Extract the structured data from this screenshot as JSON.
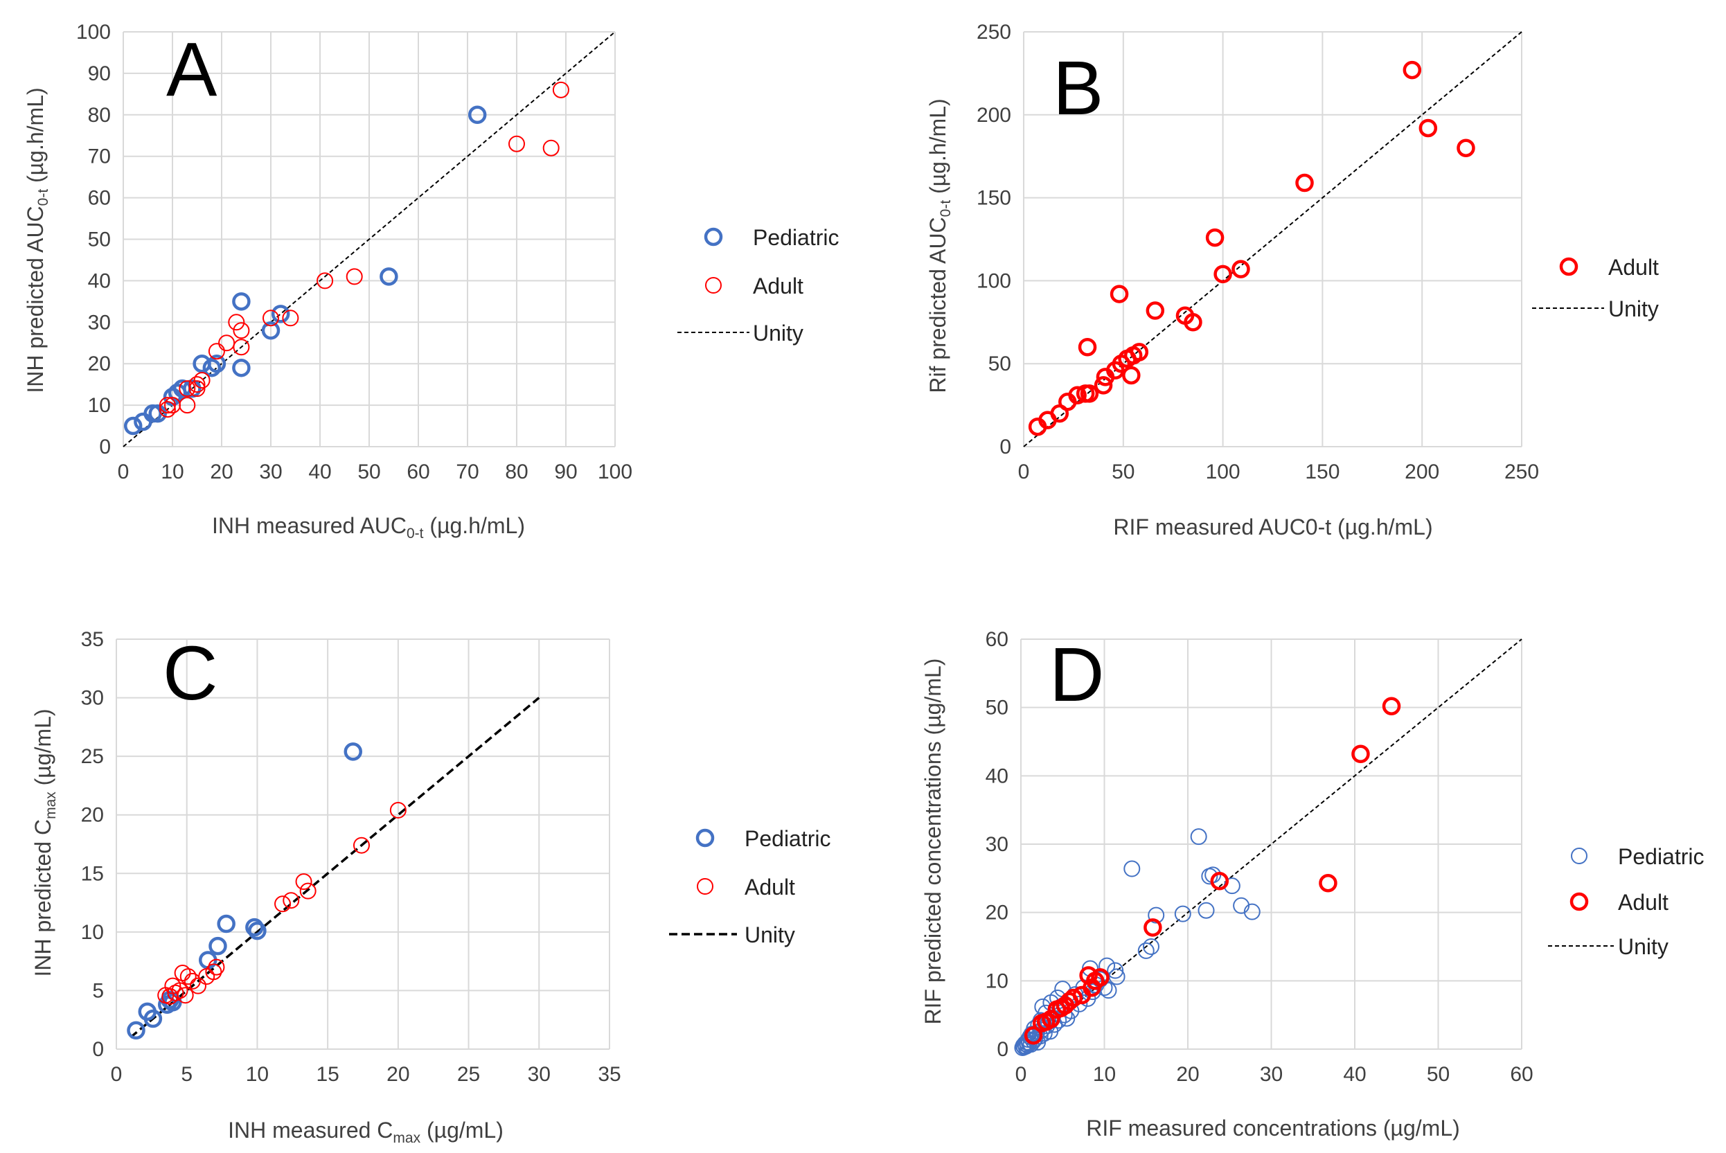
{
  "colors": {
    "pediatric": "#4472C4",
    "adult": "#FF0000",
    "unity": "#000000",
    "grid": "#D9D9D9",
    "text": "#404040"
  },
  "chart_data": [
    {
      "id": "A",
      "type": "scatter",
      "panel_letter": "A",
      "xlabel": {
        "pre": "INH measured AUC",
        "sub": "0-t",
        "post": " (µg.h/mL)"
      },
      "ylabel": {
        "pre": "INH predicted AUC",
        "sub": "0-t",
        "post": " (µg.h/mL)"
      },
      "xlim": [
        0,
        100
      ],
      "ylim": [
        0,
        100
      ],
      "xticks": [
        0,
        10,
        20,
        30,
        40,
        50,
        60,
        70,
        80,
        90,
        100
      ],
      "yticks": [
        0,
        10,
        20,
        30,
        40,
        50,
        60,
        70,
        80,
        90,
        100
      ],
      "grid": true,
      "legend_position": "right",
      "unity": [
        [
          0,
          0
        ],
        [
          100,
          100
        ]
      ],
      "legend": [
        "Pediatric",
        "Adult",
        "Unity"
      ],
      "series": [
        {
          "name": "Pediatric",
          "color": "#4472C4",
          "marker": "bold",
          "points": [
            [
              2,
              5
            ],
            [
              4,
              6
            ],
            [
              6,
              8
            ],
            [
              7,
              8
            ],
            [
              10,
              12
            ],
            [
              11,
              13
            ],
            [
              12,
              14
            ],
            [
              14,
              14
            ],
            [
              16,
              20
            ],
            [
              18,
              19
            ],
            [
              19,
              20
            ],
            [
              24,
              35
            ],
            [
              24,
              19
            ],
            [
              30,
              28
            ],
            [
              32,
              32
            ],
            [
              54,
              41
            ],
            [
              72,
              80
            ]
          ]
        },
        {
          "name": "Adult",
          "color": "#FF0000",
          "marker": "thin",
          "points": [
            [
              9,
              9
            ],
            [
              9,
              10
            ],
            [
              10,
              10
            ],
            [
              13,
              10
            ],
            [
              13,
              14
            ],
            [
              15,
              14
            ],
            [
              15,
              15
            ],
            [
              16,
              16
            ],
            [
              19,
              23
            ],
            [
              21,
              25
            ],
            [
              23,
              30
            ],
            [
              24,
              24
            ],
            [
              24,
              28
            ],
            [
              30,
              31
            ],
            [
              34,
              31
            ],
            [
              41,
              40
            ],
            [
              47,
              41
            ],
            [
              80,
              73
            ],
            [
              87,
              72
            ],
            [
              89,
              86
            ]
          ]
        }
      ]
    },
    {
      "id": "B",
      "type": "scatter",
      "panel_letter": "B",
      "xlabel": {
        "pre": "RIF measured AUC",
        "sub": "0-t",
        "post": " (µg.h/mL)"
      },
      "ylabel": {
        "pre": "Rif predicted AUC",
        "sub": "0-t",
        "post": " (µg.h/mL)"
      },
      "xlim": [
        0,
        250
      ],
      "ylim": [
        0,
        250
      ],
      "xticks": [
        0,
        50,
        100,
        150,
        200,
        250
      ],
      "yticks": [
        0,
        50,
        100,
        150,
        200,
        250
      ],
      "grid": true,
      "legend_position": "right",
      "unity": [
        [
          0,
          0
        ],
        [
          250,
          250
        ]
      ],
      "legend": [
        "Adult",
        "Unity"
      ],
      "series": [
        {
          "name": "Adult",
          "color": "#FF0000",
          "marker": "bold",
          "points": [
            [
              7,
              12
            ],
            [
              12,
              16
            ],
            [
              18,
              20
            ],
            [
              22,
              27
            ],
            [
              27,
              31
            ],
            [
              31,
              32
            ],
            [
              32,
              60
            ],
            [
              33,
              32
            ],
            [
              40,
              37
            ],
            [
              41,
              42
            ],
            [
              46,
              46
            ],
            [
              48,
              92
            ],
            [
              49,
              50
            ],
            [
              52,
              53
            ],
            [
              54,
              43
            ],
            [
              55,
              55
            ],
            [
              58,
              57
            ],
            [
              66,
              82
            ],
            [
              81,
              79
            ],
            [
              85,
              75
            ],
            [
              96,
              126
            ],
            [
              100,
              104
            ],
            [
              109,
              107
            ],
            [
              141,
              159
            ],
            [
              195,
              227
            ],
            [
              203,
              192
            ],
            [
              222,
              180
            ]
          ]
        }
      ]
    },
    {
      "id": "C",
      "type": "scatter",
      "panel_letter": "C",
      "xlabel": {
        "pre": "INH measured C",
        "sub": "max",
        "post": " (µg/mL)"
      },
      "ylabel": {
        "pre": "INH predicted C",
        "sub": "max",
        "post": " (µg/mL)"
      },
      "xlim": [
        0,
        35
      ],
      "ylim": [
        0,
        35
      ],
      "xticks": [
        0,
        5,
        10,
        15,
        20,
        25,
        30,
        35
      ],
      "yticks": [
        0,
        5,
        10,
        15,
        20,
        25,
        30,
        35
      ],
      "grid": true,
      "legend_position": "right",
      "unity": [
        [
          1,
          1
        ],
        [
          30,
          30
        ]
      ],
      "legend": [
        "Pediatric",
        "Adult",
        "Unity"
      ],
      "series": [
        {
          "name": "Pediatric",
          "color": "#4472C4",
          "marker": "bold",
          "points": [
            [
              1.4,
              1.6
            ],
            [
              2.2,
              3.2
            ],
            [
              2.6,
              2.6
            ],
            [
              3.6,
              3.8
            ],
            [
              3.8,
              4.2
            ],
            [
              4.0,
              4.0
            ],
            [
              6.5,
              7.6
            ],
            [
              7.2,
              8.8
            ],
            [
              7.8,
              10.7
            ],
            [
              9.8,
              10.4
            ],
            [
              10.0,
              10.1
            ],
            [
              16.8,
              25.4
            ]
          ]
        },
        {
          "name": "Adult",
          "color": "#FF0000",
          "marker": "thin",
          "points": [
            [
              3.5,
              4.6
            ],
            [
              3.8,
              4.5
            ],
            [
              4.0,
              5.4
            ],
            [
              4.2,
              4.8
            ],
            [
              4.5,
              5.0
            ],
            [
              4.7,
              6.5
            ],
            [
              4.9,
              4.6
            ],
            [
              5.1,
              6.2
            ],
            [
              5.4,
              5.8
            ],
            [
              5.8,
              5.4
            ],
            [
              6.4,
              6.2
            ],
            [
              6.9,
              6.6
            ],
            [
              7.1,
              7.0
            ],
            [
              11.8,
              12.4
            ],
            [
              12.4,
              12.7
            ],
            [
              13.3,
              14.3
            ],
            [
              13.6,
              13.5
            ],
            [
              17.4,
              17.4
            ],
            [
              20.0,
              20.4
            ]
          ]
        }
      ]
    },
    {
      "id": "D",
      "type": "scatter",
      "panel_letter": "D",
      "xlabel": {
        "pre": "RIF measured concentrations (µg/mL)",
        "sub": "",
        "post": ""
      },
      "ylabel": {
        "pre": "RIF predicted concentrations (µg/mL)",
        "sub": "",
        "post": ""
      },
      "xlim": [
        0,
        60
      ],
      "ylim": [
        0,
        60
      ],
      "xticks": [
        0,
        10,
        20,
        30,
        40,
        50,
        60
      ],
      "yticks": [
        0,
        10,
        20,
        30,
        40,
        50,
        60
      ],
      "grid": true,
      "legend_position": "right",
      "unity": [
        [
          0,
          0
        ],
        [
          60,
          60
        ]
      ],
      "legend": [
        "Pediatric",
        "Adult",
        "Unity"
      ],
      "series": [
        {
          "name": "Pediatric",
          "color": "#4472C4",
          "marker": "thin",
          "points": [
            [
              0.2,
              0.2
            ],
            [
              0.3,
              0.5
            ],
            [
              0.4,
              0.3
            ],
            [
              0.5,
              0.8
            ],
            [
              0.6,
              0.4
            ],
            [
              0.7,
              1.0
            ],
            [
              0.8,
              0.6
            ],
            [
              0.9,
              1.4
            ],
            [
              1.0,
              0.9
            ],
            [
              1.1,
              1.8
            ],
            [
              1.2,
              0.7
            ],
            [
              1.3,
              2.2
            ],
            [
              1.5,
              1.2
            ],
            [
              1.6,
              3.0
            ],
            [
              1.7,
              1.5
            ],
            [
              1.9,
              2.4
            ],
            [
              2.0,
              1.0
            ],
            [
              2.1,
              3.5
            ],
            [
              2.3,
              1.9
            ],
            [
              2.4,
              4.2
            ],
            [
              2.5,
              2.8
            ],
            [
              2.6,
              6.2
            ],
            [
              2.8,
              2.3
            ],
            [
              3.0,
              5.3
            ],
            [
              3.1,
              3.4
            ],
            [
              3.3,
              4.0
            ],
            [
              3.5,
              2.6
            ],
            [
              3.6,
              6.8
            ],
            [
              3.8,
              4.6
            ],
            [
              4.0,
              3.6
            ],
            [
              4.2,
              5.8
            ],
            [
              4.4,
              7.5
            ],
            [
              4.5,
              4.2
            ],
            [
              4.8,
              6.2
            ],
            [
              5.0,
              8.8
            ],
            [
              5.2,
              5.0
            ],
            [
              5.5,
              4.5
            ],
            [
              5.8,
              7.0
            ],
            [
              6.0,
              5.6
            ],
            [
              6.5,
              8.0
            ],
            [
              7.0,
              6.6
            ],
            [
              7.5,
              9.0
            ],
            [
              8.0,
              7.4
            ],
            [
              8.3,
              11.8
            ],
            [
              8.6,
              8.4
            ],
            [
              9.0,
              9.4
            ],
            [
              9.5,
              10.2
            ],
            [
              10.0,
              9.0
            ],
            [
              10.3,
              12.2
            ],
            [
              10.5,
              8.6
            ],
            [
              11.3,
              11.5
            ],
            [
              11.5,
              10.6
            ],
            [
              13.3,
              26.4
            ],
            [
              15.0,
              14.4
            ],
            [
              15.6,
              15.0
            ],
            [
              16.2,
              19.6
            ],
            [
              19.4,
              19.8
            ],
            [
              21.3,
              31.1
            ],
            [
              22.2,
              20.3
            ],
            [
              22.6,
              25.3
            ],
            [
              23.0,
              25.5
            ],
            [
              25.3,
              23.9
            ],
            [
              26.4,
              21.0
            ],
            [
              27.7,
              20.1
            ]
          ]
        },
        {
          "name": "Adult",
          "color": "#FF0000",
          "marker": "bold",
          "points": [
            [
              1.5,
              2.0
            ],
            [
              2.5,
              3.8
            ],
            [
              3.0,
              4.0
            ],
            [
              3.6,
              4.4
            ],
            [
              4.3,
              5.8
            ],
            [
              4.8,
              6.0
            ],
            [
              5.3,
              6.4
            ],
            [
              5.8,
              7.0
            ],
            [
              6.3,
              7.5
            ],
            [
              7.3,
              7.9
            ],
            [
              8.1,
              10.8
            ],
            [
              8.5,
              9.0
            ],
            [
              8.9,
              10.0
            ],
            [
              9.5,
              10.5
            ],
            [
              15.8,
              17.8
            ],
            [
              23.8,
              24.6
            ],
            [
              36.8,
              24.3
            ],
            [
              40.7,
              43.2
            ],
            [
              44.4,
              50.2
            ]
          ]
        }
      ]
    }
  ]
}
